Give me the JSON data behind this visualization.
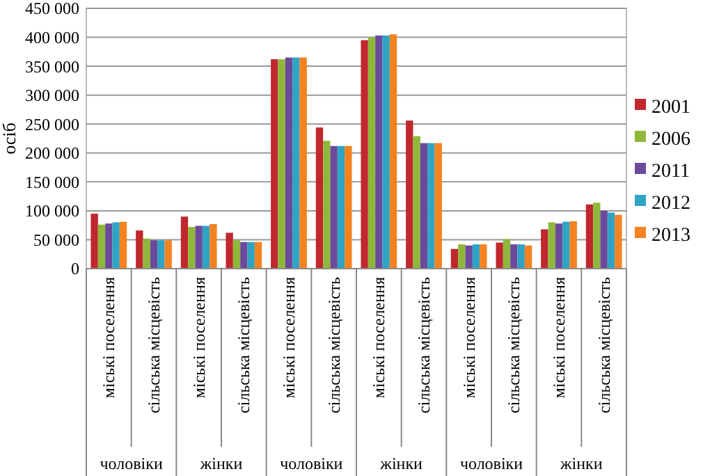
{
  "chart_data": {
    "type": "bar",
    "ylabel": "осіб",
    "categories": [
      "міські поселення",
      "сільська місцевість",
      "міські поселення",
      "сільська місцевість",
      "міські поселення",
      "сільська місцевість",
      "міські поселення",
      "сільська місцевість",
      "міські поселення",
      "сільська місцевість",
      "міські поселення",
      "сільська місцевість"
    ],
    "series": [
      {
        "name": "2001",
        "color": "#c0282d",
        "values": [
          95000,
          66000,
          90000,
          62000,
          362000,
          244000,
          395000,
          256000,
          34000,
          45000,
          68000,
          111000
        ]
      },
      {
        "name": "2006",
        "color": "#8fb83a",
        "values": [
          76000,
          52000,
          72000,
          49000,
          362000,
          221000,
          400000,
          229000,
          42000,
          51000,
          80000,
          114000
        ]
      },
      {
        "name": "2011",
        "color": "#6b4a9c",
        "values": [
          78000,
          49000,
          74000,
          46000,
          365000,
          212000,
          403000,
          217000,
          40000,
          42000,
          78000,
          100000
        ]
      },
      {
        "name": "2012",
        "color": "#2fa4c4",
        "values": [
          80000,
          49000,
          74000,
          46000,
          365000,
          212000,
          403000,
          217000,
          42000,
          42000,
          81000,
          97000
        ]
      },
      {
        "name": "2013",
        "color": "#f58220",
        "values": [
          81000,
          49000,
          77000,
          46000,
          365000,
          212000,
          405000,
          217000,
          42000,
          40000,
          82000,
          93000
        ]
      }
    ],
    "ylim": [
      0,
      450000
    ],
    "yticks": [
      {
        "value": 0,
        "label": "0"
      },
      {
        "value": 50000,
        "label": "50 000"
      },
      {
        "value": 100000,
        "label": "100 000"
      },
      {
        "value": 150000,
        "label": "150 000"
      },
      {
        "value": 200000,
        "label": "200 000"
      },
      {
        "value": 250000,
        "label": "250 000"
      },
      {
        "value": 300000,
        "label": "300 000"
      },
      {
        "value": 350000,
        "label": "350 000"
      },
      {
        "value": 400000,
        "label": "400 000"
      },
      {
        "value": 450000,
        "label": "450 000"
      }
    ],
    "grid": "y",
    "legend": "right",
    "annotations": [
      "чоловіки",
      "жінки",
      "чоловіки",
      "жінки",
      "чоловіки",
      "жінки"
    ]
  }
}
